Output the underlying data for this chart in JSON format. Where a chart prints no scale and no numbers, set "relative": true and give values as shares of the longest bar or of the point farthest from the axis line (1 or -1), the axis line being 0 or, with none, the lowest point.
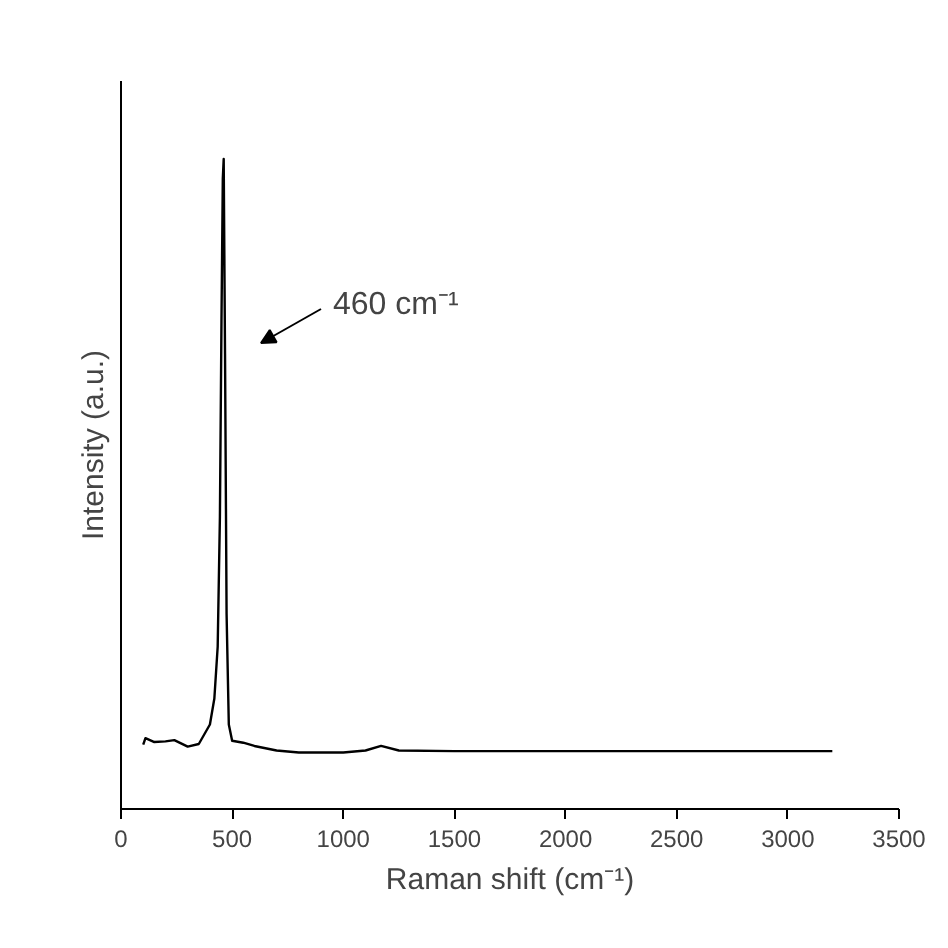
{
  "chart_data": {
    "type": "line",
    "xlabel": "Raman shift (cm⁻¹)",
    "ylabel": "Intensity (a.u.)",
    "relative": true,
    "grid": false,
    "xlim": [
      0,
      3500
    ],
    "xticks": [
      0,
      500,
      1000,
      1500,
      2000,
      2500,
      3000,
      3500
    ],
    "annotations": [
      "460 cm⁻¹"
    ],
    "series": [
      {
        "color": "#000000",
        "x": [
          100,
          110,
          150,
          200,
          240,
          300,
          350,
          400,
          420,
          435,
          445,
          452,
          458,
          462,
          468,
          475,
          485,
          500,
          550,
          600,
          700,
          800,
          1000,
          1100,
          1170,
          1250,
          1500,
          2000,
          2500,
          3000,
          3200
        ],
        "values": [
          0.099,
          0.109,
          0.103,
          0.104,
          0.106,
          0.096,
          0.1,
          0.13,
          0.17,
          0.25,
          0.45,
          0.75,
          0.97,
          1.0,
          0.7,
          0.3,
          0.13,
          0.105,
          0.102,
          0.097,
          0.09,
          0.087,
          0.087,
          0.09,
          0.097,
          0.09,
          0.089,
          0.089,
          0.089,
          0.089,
          0.089
        ]
      }
    ]
  }
}
